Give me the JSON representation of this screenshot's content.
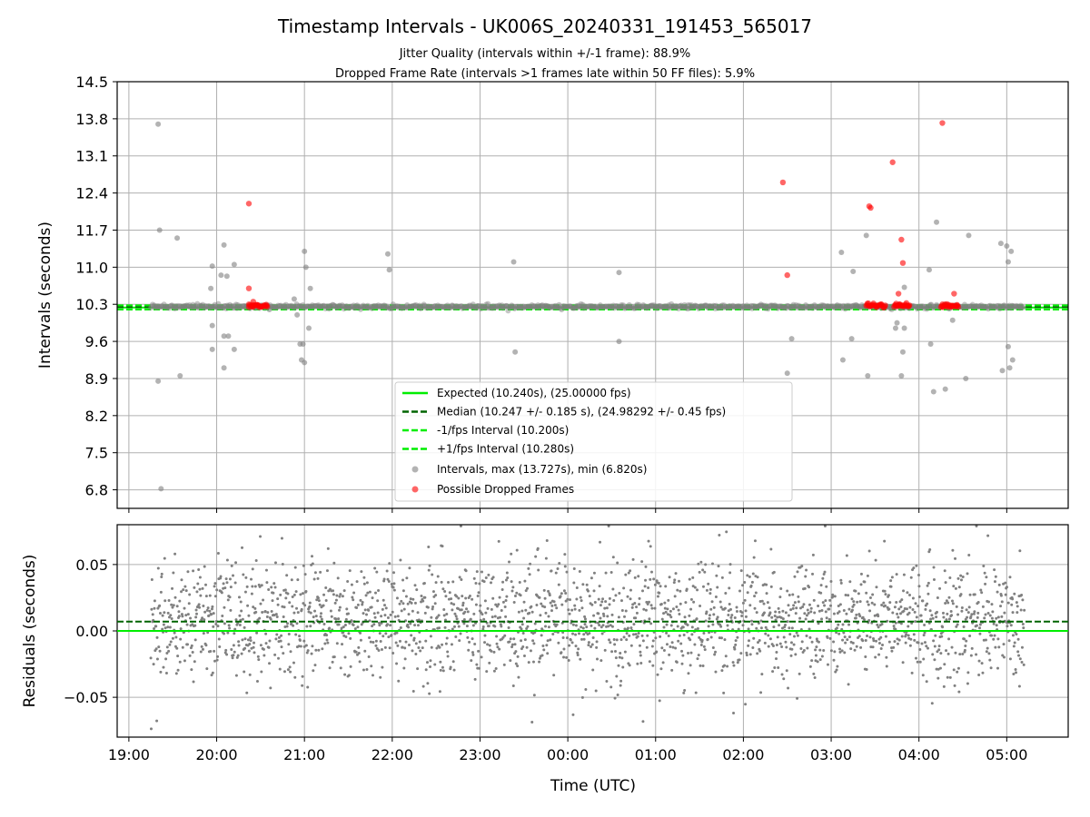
{
  "figure": {
    "title": "Timestamp Intervals - UK006S_20240331_191453_565017",
    "subtitle_1": "Jitter Quality (intervals within +/-1 frame): 88.9%",
    "subtitle_2": "Dropped Frame Rate (intervals >1 frames late within 50 FF files): 5.9%"
  },
  "chart_data": [
    {
      "type": "scatter",
      "panel": "intervals",
      "ylabel": "Intervals (seconds)",
      "xlabel": "",
      "xlim": [
        "18:52",
        "05:42"
      ],
      "ylim": [
        6.45,
        14.5
      ],
      "yticks": [
        "14.5",
        "13.8",
        "13.1",
        "12.4",
        "11.7",
        "11.0",
        "10.3",
        "9.6",
        "8.9",
        "8.2",
        "7.5",
        "6.8"
      ],
      "grid": true,
      "legend_position": "lower-center",
      "lines": [
        {
          "name": "Expected (10.240s), (25.00000 fps)",
          "y": 10.24,
          "style": "solid",
          "color": "#00ee00"
        },
        {
          "name": "Median (10.247 +/- 0.185 s), (24.98292 +/- 0.45 fps)",
          "y": 10.247,
          "style": "dashed",
          "color": "#006400"
        },
        {
          "name": "-1/fps Interval (10.200s)",
          "y": 10.2,
          "style": "dashed",
          "color": "#00ee00"
        },
        {
          "name": "+1/fps Interval (10.280s)",
          "y": 10.28,
          "style": "dashed",
          "color": "#00ee00"
        }
      ],
      "series": [
        {
          "name": "Intervals, max (13.727s), min (6.820s)",
          "color": "#808080",
          "baseline_band": [
            10.2,
            10.3
          ],
          "baseline_range_time": [
            "19:15",
            "05:12"
          ],
          "outliers": [
            [
              "19:20",
              13.7
            ],
            [
              "19:21",
              11.7
            ],
            [
              "19:20",
              8.85
            ],
            [
              "19:22",
              6.82
            ],
            [
              "19:33",
              11.55
            ],
            [
              "19:35",
              8.95
            ],
            [
              "19:57",
              11.02
            ],
            [
              "19:56",
              10.6
            ],
            [
              "19:57",
              9.9
            ],
            [
              "19:57",
              9.45
            ],
            [
              "20:03",
              10.85
            ],
            [
              "20:05",
              11.42
            ],
            [
              "20:07",
              10.83
            ],
            [
              "20:05",
              9.7
            ],
            [
              "20:08",
              9.7
            ],
            [
              "20:05",
              9.1
            ],
            [
              "20:12",
              11.05
            ],
            [
              "20:12",
              9.45
            ],
            [
              "20:36",
              10.2
            ],
            [
              "20:53",
              10.4
            ],
            [
              "20:55",
              10.1
            ],
            [
              "21:04",
              10.6
            ],
            [
              "21:03",
              9.85
            ],
            [
              "21:57",
              11.25
            ],
            [
              "21:58",
              10.95
            ],
            [
              "21:00",
              11.3
            ],
            [
              "21:01",
              11.0
            ],
            [
              "20:57",
              9.55
            ],
            [
              "20:59",
              9.55
            ],
            [
              "20:58",
              9.25
            ],
            [
              "21:00",
              9.2
            ],
            [
              "23:23",
              11.1
            ],
            [
              "23:24",
              9.4
            ],
            [
              "00:35",
              10.9
            ],
            [
              "00:35",
              9.6
            ],
            [
              "02:30",
              9.0
            ],
            [
              "02:33",
              9.65
            ],
            [
              "03:07",
              11.28
            ],
            [
              "03:08",
              9.25
            ],
            [
              "03:15",
              10.92
            ],
            [
              "03:14",
              9.65
            ],
            [
              "03:24",
              11.6
            ],
            [
              "03:25",
              8.95
            ],
            [
              "03:44",
              9.85
            ],
            [
              "03:45",
              9.95
            ],
            [
              "03:50",
              10.62
            ],
            [
              "03:50",
              9.85
            ],
            [
              "03:49",
              9.4
            ],
            [
              "03:48",
              8.95
            ],
            [
              "04:07",
              10.95
            ],
            [
              "04:08",
              9.55
            ],
            [
              "04:10",
              8.65
            ],
            [
              "04:12",
              11.85
            ],
            [
              "04:18",
              8.7
            ],
            [
              "04:34",
              11.6
            ],
            [
              "04:32",
              8.9
            ],
            [
              "04:23",
              10.0
            ],
            [
              "04:56",
              11.45
            ],
            [
              "05:00",
              11.4
            ],
            [
              "05:01",
              11.1
            ],
            [
              "05:03",
              11.3
            ],
            [
              "05:01",
              9.5
            ],
            [
              "05:04",
              9.25
            ],
            [
              "04:57",
              9.05
            ],
            [
              "05:02",
              9.1
            ]
          ]
        },
        {
          "name": "Possible Dropped Frames",
          "color": "#ff0000",
          "points": [
            [
              "20:22",
              12.2
            ],
            [
              "20:22",
              10.6
            ],
            [
              "20:25",
              10.35
            ],
            [
              "20:22",
              10.3
            ],
            [
              "20:25",
              10.27
            ],
            [
              "20:28",
              10.28
            ],
            [
              "20:31",
              10.26
            ],
            [
              "20:34",
              10.27
            ],
            [
              "02:27",
              12.6
            ],
            [
              "02:30",
              10.85
            ],
            [
              "03:26",
              12.15
            ],
            [
              "03:27",
              12.12
            ],
            [
              "03:25",
              10.28
            ],
            [
              "03:28",
              10.29
            ],
            [
              "03:31",
              10.27
            ],
            [
              "03:34",
              10.3
            ],
            [
              "03:37",
              10.28
            ],
            [
              "03:42",
              12.98
            ],
            [
              "03:44",
              10.28
            ],
            [
              "03:46",
              10.5
            ],
            [
              "03:48",
              11.52
            ],
            [
              "03:49",
              11.08
            ],
            [
              "03:47",
              10.3
            ],
            [
              "03:51",
              10.28
            ],
            [
              "03:53",
              10.27
            ],
            [
              "04:16",
              13.72
            ],
            [
              "04:16",
              10.3
            ],
            [
              "04:19",
              10.28
            ],
            [
              "04:22",
              10.27
            ],
            [
              "04:24",
              10.5
            ],
            [
              "04:26",
              10.29
            ]
          ]
        }
      ]
    },
    {
      "type": "scatter",
      "panel": "residuals",
      "ylabel": "Residuals (seconds)",
      "xlabel": "Time (UTC)",
      "xlim": [
        "18:52",
        "05:42"
      ],
      "ylim": [
        -0.08,
        0.08
      ],
      "yticks": [
        "0.05",
        "0.00",
        "−0.05"
      ],
      "xticks": [
        "19:00",
        "20:00",
        "21:00",
        "22:00",
        "23:00",
        "00:00",
        "01:00",
        "02:00",
        "03:00",
        "04:00",
        "05:00"
      ],
      "grid": true,
      "lines": [
        {
          "name": "Expected",
          "y": 0.0,
          "style": "solid",
          "color": "#00ee00"
        },
        {
          "name": "Median",
          "y": 0.007,
          "style": "dashed",
          "color": "#006400"
        }
      ],
      "series": [
        {
          "name": "Residuals",
          "color": "#808080",
          "time_range": [
            "19:15",
            "05:12"
          ],
          "spread": [
            -0.075,
            0.075
          ],
          "center": 0.007
        }
      ]
    }
  ]
}
